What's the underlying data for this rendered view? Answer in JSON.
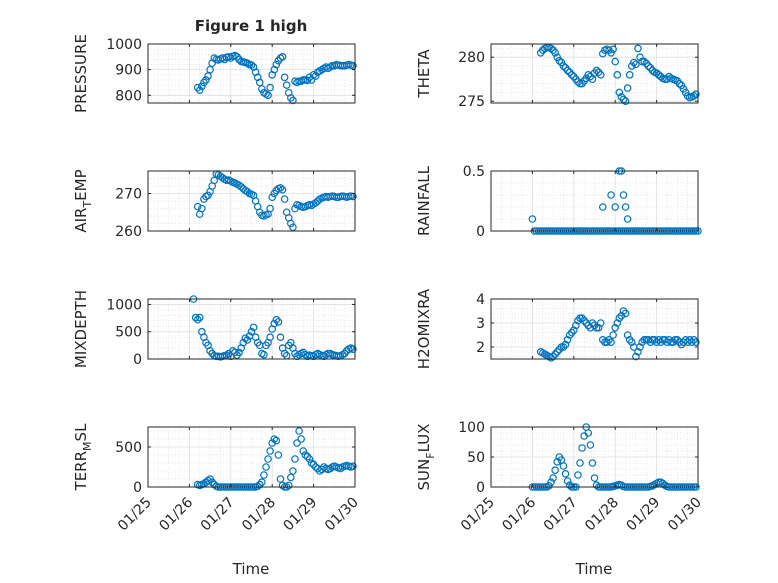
{
  "figure": {
    "title": "Figure 1 high",
    "marker_color": "#0072BD",
    "axis_color": "#262626",
    "grid_color": "#dfdfdf",
    "background": "#ffffff",
    "x_tick_labels": [
      "01/25",
      "01/26",
      "01/27",
      "01/28",
      "01/29",
      "01/30"
    ],
    "x_axis_label": "Time"
  },
  "chart_data": [
    {
      "type": "scatter",
      "panel": "top-left",
      "ylabel": "PRESSURE",
      "ylim": [
        770,
        1000
      ],
      "yticks": [
        800,
        900,
        1000
      ],
      "xlim": [
        0,
        5
      ],
      "grid": true,
      "minor_grid": true,
      "x": [
        1.2,
        1.25,
        1.3,
        1.35,
        1.4,
        1.45,
        1.5,
        1.55,
        1.6,
        1.65,
        1.7,
        1.75,
        1.8,
        1.85,
        1.9,
        1.95,
        2.0,
        2.05,
        2.1,
        2.15,
        2.2,
        2.25,
        2.3,
        2.35,
        2.4,
        2.45,
        2.5,
        2.55,
        2.6,
        2.65,
        2.7,
        2.75,
        2.8,
        2.85,
        2.9,
        2.95,
        3.0,
        3.05,
        3.1,
        3.15,
        3.2,
        3.25,
        3.3,
        3.35,
        3.4,
        3.45,
        3.5,
        3.55,
        3.6,
        3.65,
        3.7,
        3.75,
        3.8,
        3.85,
        3.9,
        3.95,
        4.0,
        4.05,
        4.1,
        4.15,
        4.2,
        4.25,
        4.3,
        4.35,
        4.4,
        4.45,
        4.5,
        4.55,
        4.6,
        4.65,
        4.7,
        4.75,
        4.8,
        4.85,
        4.9,
        4.95
      ],
      "y": [
        830,
        820,
        835,
        850,
        860,
        875,
        900,
        925,
        945,
        940,
        938,
        942,
        945,
        940,
        948,
        950,
        945,
        952,
        955,
        950,
        940,
        932,
        930,
        928,
        925,
        920,
        918,
        910,
        890,
        870,
        850,
        825,
        810,
        805,
        800,
        830,
        880,
        900,
        920,
        935,
        945,
        950,
        870,
        840,
        810,
        790,
        780,
        855,
        850,
        855,
        855,
        860,
        860,
        858,
        870,
        860,
        880,
        875,
        890,
        895,
        900,
        905,
        910,
        905,
        910,
        915,
        915,
        920,
        918,
        916,
        915,
        915,
        918,
        920,
        918,
        915
      ]
    },
    {
      "type": "scatter",
      "panel": "top-right",
      "ylabel": "THETA",
      "ylim": [
        274.8,
        281.5
      ],
      "yticks": [
        275,
        280
      ],
      "xlim": [
        0,
        5
      ],
      "grid": true,
      "minor_grid": true,
      "x": [
        1.2,
        1.25,
        1.3,
        1.35,
        1.4,
        1.45,
        1.5,
        1.55,
        1.6,
        1.65,
        1.7,
        1.75,
        1.8,
        1.85,
        1.9,
        1.95,
        2.0,
        2.05,
        2.1,
        2.15,
        2.2,
        2.25,
        2.3,
        2.35,
        2.4,
        2.45,
        2.5,
        2.55,
        2.6,
        2.65,
        2.7,
        2.75,
        2.8,
        2.85,
        2.9,
        2.95,
        3.0,
        3.05,
        3.1,
        3.15,
        3.2,
        3.25,
        3.3,
        3.35,
        3.4,
        3.45,
        3.5,
        3.55,
        3.6,
        3.65,
        3.7,
        3.75,
        3.8,
        3.85,
        3.9,
        3.95,
        4.0,
        4.05,
        4.1,
        4.15,
        4.2,
        4.25,
        4.3,
        4.35,
        4.4,
        4.45,
        4.5,
        4.55,
        4.6,
        4.65,
        4.7,
        4.75,
        4.8,
        4.85,
        4.9,
        4.95
      ],
      "y": [
        280.5,
        280.8,
        281.0,
        281.1,
        281.1,
        281.0,
        280.8,
        280.5,
        280.0,
        279.6,
        279.4,
        279.0,
        278.8,
        278.5,
        278.3,
        278.0,
        277.8,
        277.5,
        277.2,
        277.0,
        277.0,
        277.3,
        277.6,
        278.0,
        277.8,
        277.5,
        278.2,
        278.5,
        278.3,
        278.0,
        280.4,
        280.8,
        280.9,
        280.8,
        280.5,
        280.9,
        279.5,
        278.0,
        276.0,
        275.5,
        275.2,
        275.0,
        276.5,
        278.0,
        279.0,
        279.4,
        279.2,
        281.0,
        280.0,
        279.5,
        279.5,
        279.3,
        279.0,
        278.8,
        278.5,
        278.3,
        278.2,
        278.0,
        277.8,
        277.6,
        277.5,
        277.5,
        277.8,
        277.6,
        277.5,
        277.4,
        277.3,
        277.0,
        276.8,
        276.4,
        276.0,
        275.6,
        275.4,
        275.5,
        275.6,
        275.8
      ]
    },
    {
      "type": "scatter",
      "panel": "second-left",
      "ylabel": "AIR_TEMP",
      "ylim": [
        260,
        276
      ],
      "yticks": [
        260,
        270
      ],
      "xlim": [
        0,
        5
      ],
      "grid": true,
      "minor_grid": true,
      "x": [
        1.2,
        1.25,
        1.3,
        1.35,
        1.4,
        1.45,
        1.5,
        1.55,
        1.6,
        1.65,
        1.7,
        1.75,
        1.8,
        1.85,
        1.9,
        1.95,
        2.0,
        2.05,
        2.1,
        2.15,
        2.2,
        2.25,
        2.3,
        2.35,
        2.4,
        2.45,
        2.5,
        2.55,
        2.6,
        2.65,
        2.7,
        2.75,
        2.8,
        2.85,
        2.9,
        2.95,
        3.0,
        3.05,
        3.1,
        3.15,
        3.2,
        3.25,
        3.3,
        3.35,
        3.4,
        3.45,
        3.5,
        3.55,
        3.6,
        3.65,
        3.7,
        3.75,
        3.8,
        3.85,
        3.9,
        3.95,
        4.0,
        4.05,
        4.1,
        4.15,
        4.2,
        4.25,
        4.3,
        4.35,
        4.4,
        4.45,
        4.5,
        4.55,
        4.6,
        4.65,
        4.7,
        4.75,
        4.8,
        4.85,
        4.9,
        4.95
      ],
      "y": [
        266.5,
        264.5,
        266.0,
        268.5,
        269.2,
        269.5,
        270.5,
        272.0,
        273.5,
        275.2,
        275.0,
        274.6,
        274.2,
        273.8,
        273.5,
        273.6,
        273.3,
        273.0,
        272.8,
        272.5,
        272.2,
        271.8,
        271.3,
        270.8,
        270.5,
        270.0,
        269.8,
        269.5,
        268.0,
        266.5,
        265.0,
        264.2,
        264.0,
        264.3,
        264.5,
        266.0,
        269.0,
        270.0,
        270.8,
        271.3,
        271.5,
        271.0,
        268.5,
        265.0,
        263.5,
        262.0,
        261.0,
        266.0,
        267.0,
        266.8,
        266.5,
        266.3,
        266.5,
        266.8,
        267.0,
        266.8,
        267.2,
        267.5,
        268.0,
        268.5,
        268.8,
        269.0,
        269.2,
        269.0,
        269.2,
        269.3,
        269.2,
        269.0,
        269.0,
        269.2,
        269.3,
        269.2,
        269.0,
        269.2,
        269.3,
        269.2
      ]
    },
    {
      "type": "scatter",
      "panel": "second-right",
      "ylabel": "RAINFALL",
      "ylim": [
        0,
        0.5
      ],
      "yticks": [
        0,
        0.5
      ],
      "xlim": [
        0,
        5
      ],
      "grid": true,
      "minor_grid": true,
      "x": [
        1.0,
        1.05,
        1.1,
        1.15,
        1.2,
        1.25,
        1.3,
        1.35,
        1.4,
        1.45,
        1.5,
        1.55,
        1.6,
        1.65,
        1.7,
        1.75,
        1.8,
        1.85,
        1.9,
        1.95,
        2.0,
        2.05,
        2.1,
        2.15,
        2.2,
        2.25,
        2.3,
        2.35,
        2.4,
        2.45,
        2.5,
        2.55,
        2.6,
        2.65,
        2.7,
        2.75,
        2.8,
        2.85,
        2.9,
        2.95,
        3.0,
        3.05,
        3.1,
        3.15,
        3.2,
        3.25,
        3.3,
        3.35,
        3.4,
        3.45,
        3.5,
        3.55,
        3.6,
        3.65,
        3.7,
        3.75,
        3.8,
        3.85,
        3.9,
        3.95,
        4.0,
        4.05,
        4.1,
        4.15,
        4.2,
        4.25,
        4.3,
        4.35,
        4.4,
        4.45,
        4.5,
        4.55,
        4.6,
        4.65,
        4.7,
        4.75,
        4.8,
        4.85,
        4.9,
        4.95,
        5.0,
        2.7,
        2.9,
        3.0,
        3.1,
        3.15,
        3.2,
        3.25,
        3.3
      ],
      "y": [
        0.1,
        0,
        0,
        0,
        0,
        0,
        0,
        0,
        0,
        0,
        0,
        0,
        0,
        0,
        0,
        0,
        0,
        0,
        0,
        0,
        0,
        0,
        0,
        0,
        0,
        0,
        0,
        0,
        0,
        0,
        0,
        0,
        0,
        0,
        0,
        0,
        0,
        0,
        0,
        0,
        0,
        0,
        0,
        0,
        0,
        0,
        0,
        0,
        0,
        0,
        0,
        0,
        0,
        0,
        0,
        0,
        0,
        0,
        0,
        0,
        0,
        0,
        0,
        0,
        0,
        0,
        0,
        0,
        0,
        0,
        0,
        0,
        0,
        0,
        0,
        0,
        0,
        0,
        0,
        0,
        0,
        0.2,
        0.3,
        0.2,
        0.5,
        0.5,
        0.3,
        0.2,
        0.1
      ]
    },
    {
      "type": "scatter",
      "panel": "third-left",
      "ylabel": "MIXDEPTH",
      "ylim": [
        0,
        1100
      ],
      "yticks": [
        0,
        500,
        1000
      ],
      "xlim": [
        0,
        5
      ],
      "grid": true,
      "minor_grid": true,
      "x": [
        1.1,
        1.15,
        1.2,
        1.25,
        1.3,
        1.35,
        1.4,
        1.45,
        1.5,
        1.55,
        1.6,
        1.65,
        1.7,
        1.75,
        1.8,
        1.85,
        1.9,
        1.95,
        2.0,
        2.05,
        2.1,
        2.15,
        2.2,
        2.25,
        2.3,
        2.35,
        2.4,
        2.45,
        2.5,
        2.55,
        2.6,
        2.65,
        2.7,
        2.75,
        2.8,
        2.85,
        2.9,
        2.95,
        3.0,
        3.05,
        3.1,
        3.15,
        3.2,
        3.25,
        3.3,
        3.35,
        3.4,
        3.45,
        3.5,
        3.55,
        3.6,
        3.65,
        3.7,
        3.75,
        3.8,
        3.85,
        3.9,
        3.95,
        4.0,
        4.05,
        4.1,
        4.15,
        4.2,
        4.25,
        4.3,
        4.35,
        4.4,
        4.45,
        4.5,
        4.55,
        4.6,
        4.65,
        4.7,
        4.75,
        4.8,
        4.85,
        4.9,
        4.95
      ],
      "y": [
        1100,
        760,
        720,
        760,
        500,
        400,
        300,
        250,
        150,
        100,
        60,
        50,
        50,
        40,
        50,
        60,
        70,
        100,
        50,
        150,
        120,
        70,
        120,
        200,
        300,
        380,
        350,
        420,
        500,
        580,
        400,
        300,
        250,
        100,
        80,
        250,
        300,
        400,
        550,
        650,
        720,
        680,
        400,
        200,
        100,
        60,
        250,
        300,
        200,
        100,
        50,
        80,
        100,
        120,
        80,
        50,
        70,
        60,
        50,
        80,
        100,
        80,
        60,
        50,
        80,
        100,
        100,
        80,
        70,
        60,
        50,
        60,
        80,
        100,
        150,
        180,
        200,
        180
      ]
    },
    {
      "type": "scatter",
      "panel": "third-right",
      "ylabel": "H2OMIXRA",
      "ylim": [
        1.5,
        4
      ],
      "yticks": [
        2,
        3,
        4
      ],
      "xlim": [
        0,
        5
      ],
      "grid": true,
      "minor_grid": true,
      "x": [
        1.2,
        1.25,
        1.3,
        1.35,
        1.4,
        1.45,
        1.5,
        1.55,
        1.6,
        1.65,
        1.7,
        1.75,
        1.8,
        1.85,
        1.9,
        1.95,
        2.0,
        2.05,
        2.1,
        2.15,
        2.2,
        2.25,
        2.3,
        2.35,
        2.4,
        2.45,
        2.5,
        2.55,
        2.6,
        2.65,
        2.7,
        2.75,
        2.8,
        2.85,
        2.9,
        2.95,
        3.0,
        3.05,
        3.1,
        3.15,
        3.2,
        3.25,
        3.3,
        3.35,
        3.4,
        3.45,
        3.5,
        3.55,
        3.6,
        3.65,
        3.7,
        3.75,
        3.8,
        3.85,
        3.9,
        3.95,
        4.0,
        4.05,
        4.1,
        4.15,
        4.2,
        4.25,
        4.3,
        4.35,
        4.4,
        4.45,
        4.5,
        4.55,
        4.6,
        4.65,
        4.7,
        4.75,
        4.8,
        4.85,
        4.9,
        4.95
      ],
      "y": [
        1.8,
        1.75,
        1.7,
        1.65,
        1.6,
        1.55,
        1.6,
        1.7,
        1.8,
        1.9,
        2.0,
        2.0,
        2.1,
        2.3,
        2.5,
        2.6,
        2.7,
        2.9,
        3.1,
        3.2,
        3.2,
        3.1,
        3.0,
        2.9,
        2.8,
        3.0,
        2.9,
        2.8,
        2.8,
        3.0,
        2.3,
        2.2,
        2.2,
        2.3,
        2.2,
        2.5,
        2.8,
        3.0,
        3.2,
        3.3,
        3.5,
        3.4,
        2.5,
        2.3,
        2.2,
        2.0,
        1.6,
        1.8,
        2.0,
        2.2,
        2.3,
        2.3,
        2.3,
        2.2,
        2.3,
        2.3,
        2.2,
        2.3,
        2.2,
        2.3,
        2.3,
        2.2,
        2.3,
        2.2,
        2.2,
        2.3,
        2.3,
        2.2,
        2.1,
        2.2,
        2.3,
        2.2,
        2.3,
        2.2,
        2.3,
        2.2
      ]
    },
    {
      "type": "scatter",
      "panel": "bottom-left",
      "ylabel": "TERR_MSL",
      "ylim": [
        0,
        750
      ],
      "yticks": [
        0,
        500
      ],
      "xlim": [
        0,
        5
      ],
      "grid": true,
      "minor_grid": true,
      "x": [
        1.2,
        1.25,
        1.3,
        1.35,
        1.4,
        1.45,
        1.5,
        1.55,
        1.6,
        1.65,
        1.7,
        1.75,
        1.8,
        1.85,
        1.9,
        1.95,
        2.0,
        2.05,
        2.1,
        2.15,
        2.2,
        2.25,
        2.3,
        2.35,
        2.4,
        2.45,
        2.5,
        2.55,
        2.6,
        2.65,
        2.7,
        2.75,
        2.8,
        2.85,
        2.9,
        2.95,
        3.0,
        3.05,
        3.1,
        3.15,
        3.2,
        3.25,
        3.3,
        3.35,
        3.4,
        3.45,
        3.5,
        3.55,
        3.6,
        3.65,
        3.7,
        3.75,
        3.8,
        3.85,
        3.9,
        3.95,
        4.0,
        4.05,
        4.1,
        4.15,
        4.2,
        4.25,
        4.3,
        4.35,
        4.4,
        4.45,
        4.5,
        4.55,
        4.6,
        4.65,
        4.7,
        4.75,
        4.8,
        4.85,
        4.9,
        4.95
      ],
      "y": [
        30,
        20,
        30,
        40,
        60,
        80,
        100,
        60,
        30,
        10,
        0,
        0,
        0,
        0,
        0,
        0,
        0,
        0,
        0,
        0,
        0,
        0,
        0,
        0,
        0,
        0,
        0,
        0,
        0,
        10,
        30,
        60,
        150,
        250,
        350,
        450,
        550,
        600,
        580,
        400,
        100,
        20,
        0,
        0,
        20,
        120,
        200,
        350,
        550,
        700,
        600,
        450,
        400,
        380,
        350,
        300,
        280,
        250,
        230,
        200,
        220,
        250,
        230,
        220,
        230,
        250,
        260,
        250,
        240,
        230,
        250,
        260,
        270,
        260,
        250,
        260
      ]
    },
    {
      "type": "scatter",
      "panel": "bottom-right",
      "ylabel": "SUN_FLUX",
      "ylim": [
        0,
        100
      ],
      "yticks": [
        0,
        50,
        100
      ],
      "xlim": [
        0,
        5
      ],
      "grid": true,
      "minor_grid": true,
      "x": [
        1.0,
        1.05,
        1.1,
        1.15,
        1.2,
        1.25,
        1.3,
        1.35,
        1.4,
        1.45,
        1.5,
        1.55,
        1.6,
        1.65,
        1.7,
        1.75,
        1.8,
        1.85,
        1.9,
        1.95,
        2.0,
        2.05,
        2.1,
        2.15,
        2.2,
        2.25,
        2.3,
        2.35,
        2.4,
        2.45,
        2.5,
        2.55,
        2.6,
        2.65,
        2.7,
        2.75,
        2.8,
        2.85,
        2.9,
        2.95,
        3.0,
        3.05,
        3.1,
        3.15,
        3.2,
        3.25,
        3.3,
        3.35,
        3.4,
        3.45,
        3.5,
        3.55,
        3.6,
        3.65,
        3.7,
        3.75,
        3.8,
        3.85,
        3.9,
        3.95,
        4.0,
        4.05,
        4.1,
        4.15,
        4.2,
        4.25,
        4.3,
        4.35,
        4.4,
        4.45,
        4.5,
        4.55,
        4.6,
        4.65,
        4.7,
        4.75,
        4.8,
        4.85,
        4.9,
        4.95
      ],
      "y": [
        0,
        0,
        0,
        0,
        0,
        0,
        0,
        0,
        2,
        8,
        15,
        28,
        42,
        50,
        45,
        35,
        22,
        10,
        3,
        0,
        0,
        0,
        20,
        40,
        65,
        85,
        100,
        90,
        70,
        40,
        15,
        3,
        0,
        0,
        0,
        0,
        0,
        0,
        0,
        1,
        2,
        3,
        4,
        3,
        1,
        0,
        0,
        0,
        0,
        0,
        0,
        0,
        0,
        0,
        0,
        0,
        0,
        1,
        2,
        4,
        6,
        8,
        8,
        6,
        3,
        1,
        0,
        0,
        0,
        0,
        0,
        0,
        0,
        0,
        0,
        0,
        0,
        0,
        0,
        0
      ]
    }
  ]
}
